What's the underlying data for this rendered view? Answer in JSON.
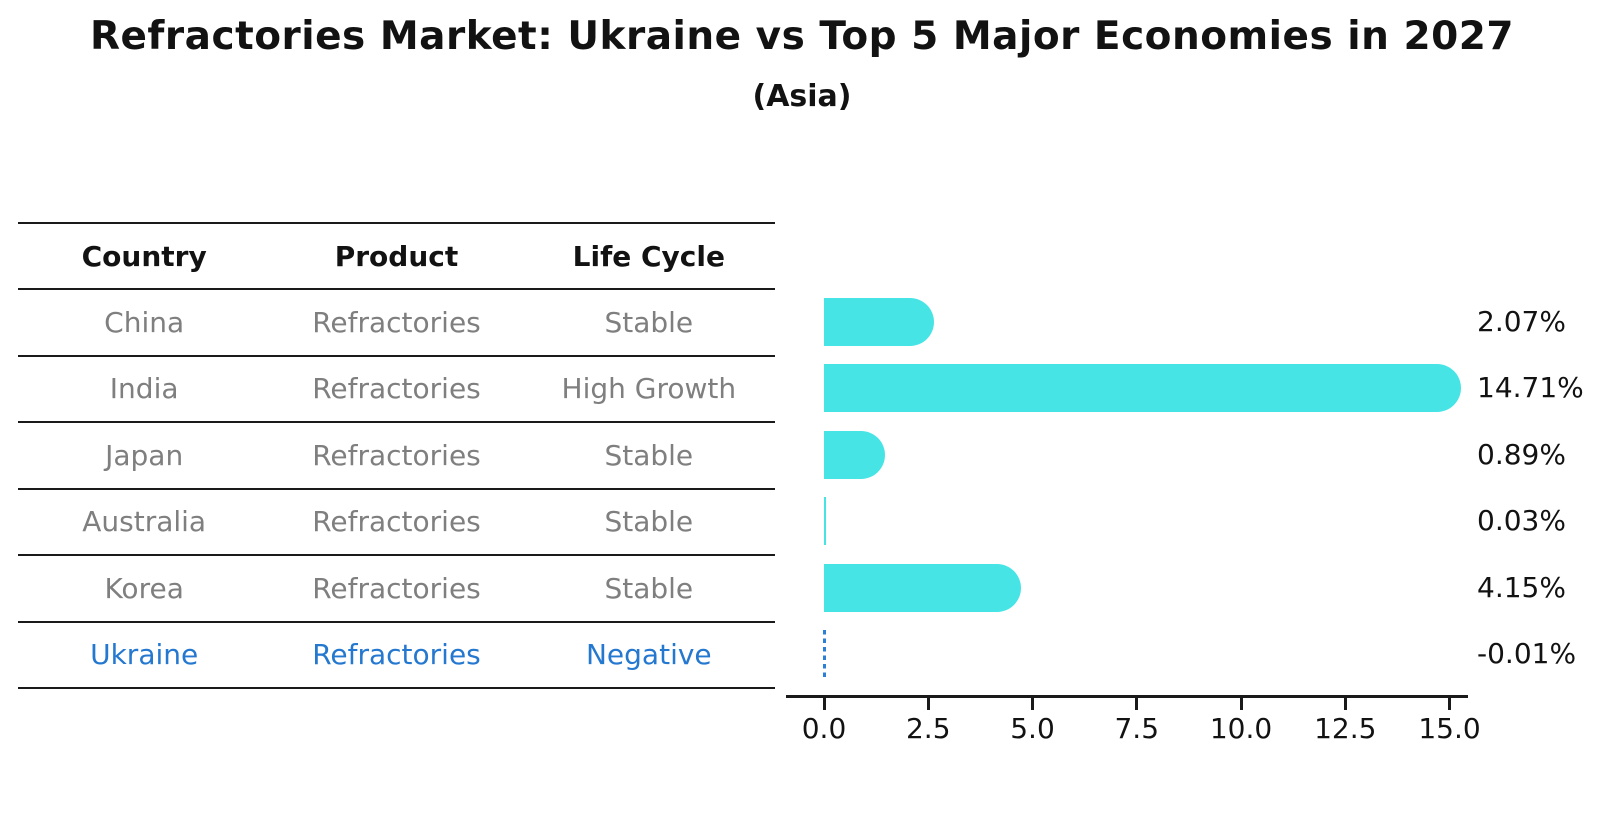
{
  "title": "Refractories Market: Ukraine vs Top 5 Major Economies in 2027",
  "subtitle": "(Asia)",
  "colors": {
    "bar": "#47e4e6",
    "highlight_text": "#2478cf",
    "dashed_marker": "#2b7fd4",
    "cell_text": "#7f7f7f",
    "heading_text": "#121212"
  },
  "table": {
    "headers": [
      "Country",
      "Product",
      "Life Cycle"
    ],
    "rows": [
      {
        "country": "China",
        "product": "Refractories",
        "life_cycle": "Stable",
        "highlight": false
      },
      {
        "country": "India",
        "product": "Refractories",
        "life_cycle": "High Growth",
        "highlight": false
      },
      {
        "country": "Japan",
        "product": "Refractories",
        "life_cycle": "Stable",
        "highlight": false
      },
      {
        "country": "Australia",
        "product": "Refractories",
        "life_cycle": "Stable",
        "highlight": false
      },
      {
        "country": "Korea",
        "product": "Refractories",
        "life_cycle": "Stable",
        "highlight": false
      },
      {
        "country": "Ukraine",
        "product": "Refractories",
        "life_cycle": "Negative",
        "highlight": true
      }
    ]
  },
  "chart_data": {
    "type": "bar",
    "orientation": "horizontal",
    "title": "Refractories Market: Ukraine vs Top 5 Major Economies in 2027 (Asia)",
    "categories": [
      "China",
      "India",
      "Japan",
      "Australia",
      "Korea",
      "Ukraine"
    ],
    "values": [
      2.07,
      14.71,
      0.89,
      0.03,
      4.15,
      -0.01
    ],
    "value_labels": [
      "2.07%",
      "14.71%",
      "0.89%",
      "0.03%",
      "4.15%",
      "-0.01%"
    ],
    "x_ticks": [
      0.0,
      2.5,
      5.0,
      7.5,
      10.0,
      12.5,
      15.0
    ],
    "x_tick_labels": [
      "0.0",
      "2.5",
      "5.0",
      "7.5",
      "10.0",
      "12.5",
      "15.0"
    ],
    "xlim": [
      -0.9,
      15.4
    ],
    "xlabel": "",
    "ylabel": "",
    "grid": false,
    "legend": false,
    "bar_style": "rounded-right-cap",
    "negative_marker": "blue-dashed-line-at-zero"
  }
}
